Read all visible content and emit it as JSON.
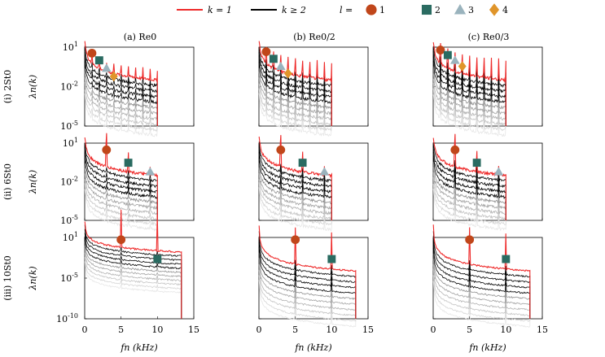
{
  "legend": {
    "red_label": "k = 1",
    "black_label": "k ≥ 2",
    "l_prefix": "l =",
    "markers": [
      {
        "label": "1",
        "shape": "circle",
        "color": "#c0461a"
      },
      {
        "label": "2",
        "shape": "square",
        "color": "#2a6b61"
      },
      {
        "label": "3",
        "shape": "triangle",
        "color": "#9ab3bd"
      },
      {
        "label": "4",
        "shape": "diamond",
        "color": "#e0952a"
      }
    ]
  },
  "colors": {
    "red": "#ee2a2a",
    "black": "#000000",
    "gray_light": "#d6d6d6"
  },
  "chart_data": {
    "type": "line",
    "columns": [
      "(a) Re0",
      "(b) Re0/2",
      "(c) Re0/3"
    ],
    "rows": [
      "(i) 2St0",
      "(ii) 6St0",
      "(iii) 10St0"
    ],
    "ylabel": "λn(k)",
    "xlabel": "fn (kHz)",
    "xlim": [
      0,
      15
    ],
    "xticks": [
      "0",
      "5",
      "10",
      "15"
    ],
    "yscale": "log",
    "ylim_rows": [
      [
        1e-05,
        10
      ],
      [
        1e-05,
        10
      ],
      [
        1e-10,
        10
      ]
    ],
    "yticks_rows": [
      [
        "10^1",
        "10^-2",
        "10^-5"
      ],
      [
        "10^1",
        "10^-2",
        "10^-5"
      ],
      [
        "10^1",
        "10^-5",
        "10^-10"
      ]
    ],
    "harmonic_markers": [
      [
        [
          [
            1,
            3.5
          ],
          [
            2,
            1.0
          ],
          [
            3,
            0.25
          ],
          [
            4,
            0.06
          ]
        ],
        [
          [
            1,
            4.5
          ],
          [
            2,
            1.3
          ],
          [
            3,
            0.35
          ],
          [
            4,
            0.1
          ]
        ],
        [
          [
            1,
            6.0
          ],
          [
            2,
            2.5
          ],
          [
            3,
            1.0
          ],
          [
            4,
            0.35
          ]
        ]
      ],
      [
        [
          [
            3,
            3.0
          ],
          [
            6,
            0.3
          ],
          [
            9,
            0.06
          ]
        ],
        [
          [
            3,
            3.0
          ],
          [
            6,
            0.3
          ],
          [
            9,
            0.06
          ]
        ],
        [
          [
            3,
            3.0
          ],
          [
            6,
            0.3
          ],
          [
            9,
            0.06
          ]
        ]
      ],
      [
        [
          [
            5,
            5.0
          ],
          [
            10,
            0.012
          ]
        ],
        [
          [
            5,
            5.0
          ],
          [
            10,
            0.012
          ]
        ],
        [
          [
            5,
            5.0
          ],
          [
            10,
            0.012
          ]
        ]
      ]
    ]
  }
}
